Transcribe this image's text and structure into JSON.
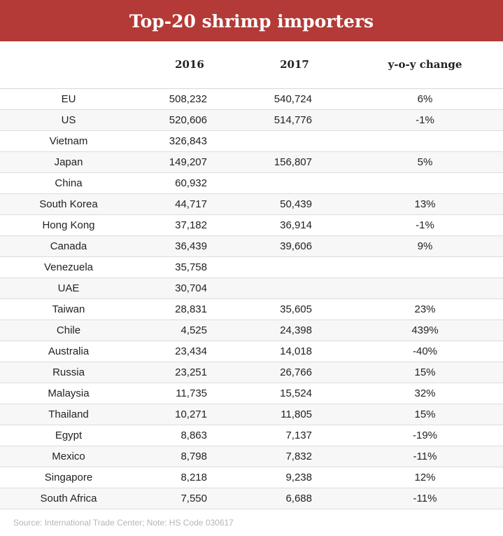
{
  "title": "Top-20 shrimp importers",
  "columns": [
    "",
    "2016",
    "2017",
    "y-o-y change"
  ],
  "source": "Source: International Trade Center; Note: HS Code 030617",
  "chart_data": {
    "type": "table",
    "title": "Top-20 shrimp importers",
    "columns": [
      "",
      "2016",
      "2017",
      "y-o-y change"
    ],
    "rows": [
      {
        "country": "EU",
        "v2016": "508,232",
        "v2017": "540,724",
        "change": "6%"
      },
      {
        "country": "US",
        "v2016": "520,606",
        "v2017": "514,776",
        "change": "-1%"
      },
      {
        "country": "Vietnam",
        "v2016": "326,843",
        "v2017": "",
        "change": ""
      },
      {
        "country": "Japan",
        "v2016": "149,207",
        "v2017": "156,807",
        "change": "5%"
      },
      {
        "country": "China",
        "v2016": "60,932",
        "v2017": "",
        "change": ""
      },
      {
        "country": "South Korea",
        "v2016": "44,717",
        "v2017": "50,439",
        "change": "13%"
      },
      {
        "country": "Hong Kong",
        "v2016": "37,182",
        "v2017": "36,914",
        "change": "-1%"
      },
      {
        "country": "Canada",
        "v2016": "36,439",
        "v2017": "39,606",
        "change": "9%"
      },
      {
        "country": "Venezuela",
        "v2016": "35,758",
        "v2017": "",
        "change": ""
      },
      {
        "country": "UAE",
        "v2016": "30,704",
        "v2017": "",
        "change": ""
      },
      {
        "country": "Taiwan",
        "v2016": "28,831",
        "v2017": "35,605",
        "change": "23%"
      },
      {
        "country": "Chile",
        "v2016": "4,525",
        "v2017": "24,398",
        "change": "439%"
      },
      {
        "country": "Australia",
        "v2016": "23,434",
        "v2017": "14,018",
        "change": "-40%"
      },
      {
        "country": "Russia",
        "v2016": "23,251",
        "v2017": "26,766",
        "change": "15%"
      },
      {
        "country": "Malaysia",
        "v2016": "11,735",
        "v2017": "15,524",
        "change": "32%"
      },
      {
        "country": "Thailand",
        "v2016": "10,271",
        "v2017": "11,805",
        "change": "15%"
      },
      {
        "country": "Egypt",
        "v2016": "8,863",
        "v2017": "7,137",
        "change": "-19%"
      },
      {
        "country": "Mexico",
        "v2016": "8,798",
        "v2017": "7,832",
        "change": "-11%"
      },
      {
        "country": "Singapore",
        "v2016": "8,218",
        "v2017": "9,238",
        "change": "12%"
      },
      {
        "country": "South Africa",
        "v2016": "7,550",
        "v2017": "6,688",
        "change": "-11%"
      }
    ]
  },
  "colors": {
    "title_bg": "#b33a36",
    "title_text": "#ffffff",
    "stripe": "#f7f7f7",
    "source_text": "#b5b5b5"
  }
}
